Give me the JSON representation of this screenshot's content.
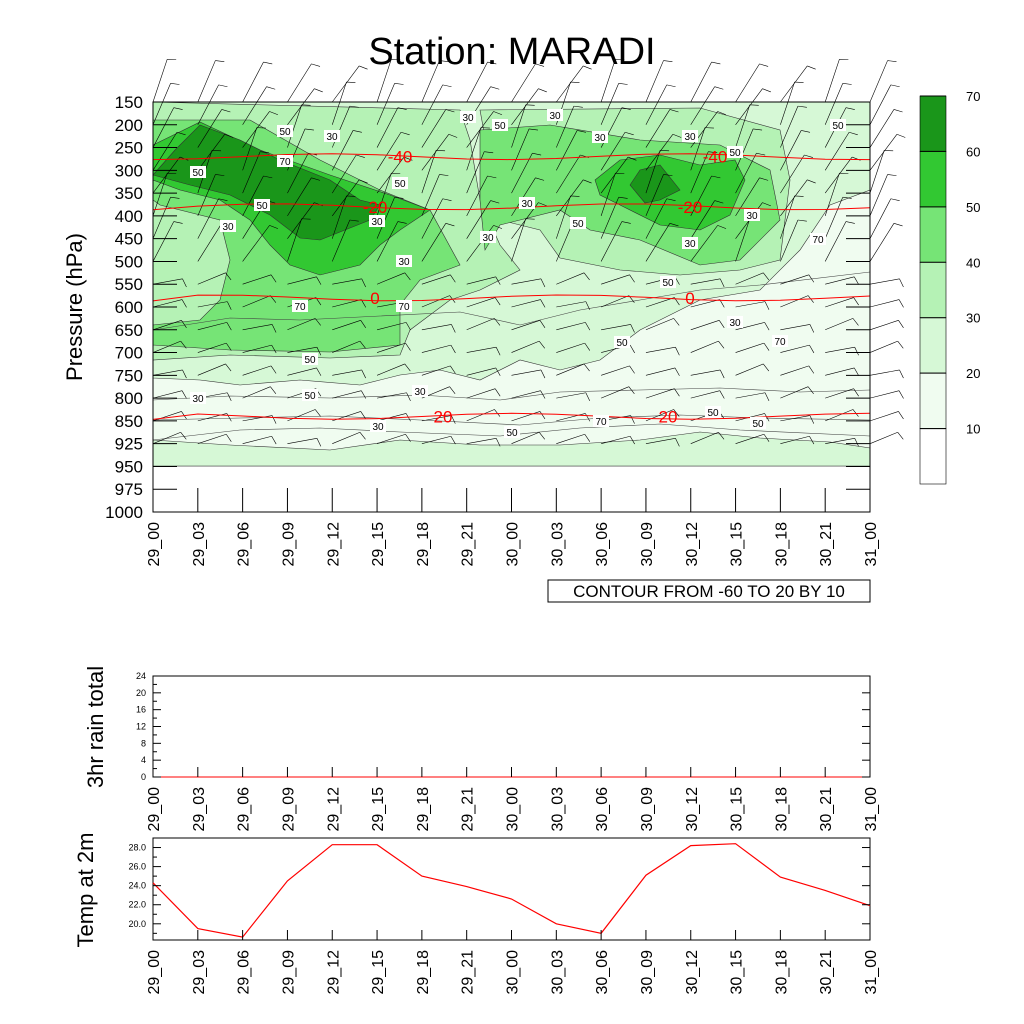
{
  "title": "Station: MARADI",
  "colors": {
    "shade": [
      "#ffffff",
      "#f0fcf0",
      "#d6f8d6",
      "#b5f2b5",
      "#76e476",
      "#32c832",
      "#1a961a"
    ],
    "temperature_line": "#ff0000",
    "isotherm": "#ff0000"
  },
  "chart_data": [
    {
      "type": "heatmap",
      "title": "Station: MARADI",
      "ylabel": "Pressure (hPa)",
      "xlabel": "",
      "categories": [
        "29_00",
        "29_03",
        "29_06",
        "29_09",
        "29_12",
        "29_15",
        "29_18",
        "29_21",
        "30_00",
        "30_03",
        "30_06",
        "30_09",
        "30_12",
        "30_15",
        "30_18",
        "30_21",
        "31_00"
      ],
      "y_levels": [
        "150",
        "200",
        "250",
        "300",
        "350",
        "400",
        "450",
        "500",
        "550",
        "600",
        "650",
        "700",
        "750",
        "800",
        "850",
        "925",
        "950",
        "975",
        "1000"
      ],
      "ylim": [
        1000,
        150
      ],
      "legend": {
        "position": "right",
        "levels": [
          "10",
          "20",
          "30",
          "40",
          "50",
          "60",
          "70"
        ]
      },
      "contour_note": "CONTOUR FROM -60 TO 20 BY 10",
      "isotherms": [
        {
          "label": "-40",
          "pressure": 270
        },
        {
          "label": "-20",
          "pressure": 380
        },
        {
          "label": "0",
          "pressure": 580
        },
        {
          "label": "20",
          "pressure": 840
        }
      ],
      "contour_labels": [
        "30",
        "50",
        "70",
        "50",
        "30",
        "50",
        "30",
        "30",
        "50",
        "70",
        "50",
        "50",
        "30",
        "30",
        "30",
        "30",
        "30",
        "50",
        "30",
        "30",
        "30",
        "50",
        "70",
        "70",
        "50"
      ]
    },
    {
      "type": "line",
      "ylabel": "3hr rain total",
      "categories": [
        "29_00",
        "29_03",
        "29_06",
        "29_09",
        "29_12",
        "29_15",
        "29_18",
        "29_21",
        "30_00",
        "30_03",
        "30_06",
        "30_09",
        "30_12",
        "30_15",
        "30_18",
        "30_21",
        "31_00"
      ],
      "ylim": [
        0,
        24
      ],
      "yticks": [
        "0",
        "4",
        "8",
        "12",
        "16",
        "20",
        "24"
      ],
      "values": [
        0,
        0,
        0,
        0,
        0,
        0,
        0,
        0,
        0,
        0,
        0,
        0,
        0,
        0,
        0,
        0,
        0
      ]
    },
    {
      "type": "line",
      "ylabel": "Temp at 2m",
      "categories": [
        "29_00",
        "29_03",
        "29_06",
        "29_09",
        "29_12",
        "29_15",
        "29_18",
        "29_21",
        "30_00",
        "30_03",
        "30_06",
        "30_09",
        "30_12",
        "30_15",
        "30_18",
        "30_21",
        "31_00"
      ],
      "ylim": [
        18.3,
        29.0
      ],
      "yticks": [
        "20.0",
        "22.0",
        "24.0",
        "26.0",
        "28.0"
      ],
      "values": [
        24.3,
        19.5,
        18.6,
        24.5,
        28.3,
        28.3,
        25.0,
        23.9,
        22.6,
        20.0,
        19.0,
        25.1,
        28.2,
        28.4,
        24.9,
        23.5,
        21.9
      ]
    }
  ]
}
